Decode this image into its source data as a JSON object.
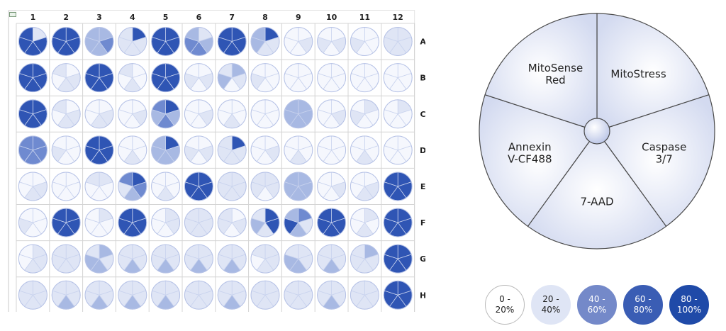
{
  "plate": {
    "columns": [
      "1",
      "2",
      "3",
      "4",
      "5",
      "6",
      "7",
      "8",
      "9",
      "10",
      "11",
      "12"
    ],
    "rows": [
      "A",
      "B",
      "C",
      "D",
      "E",
      "F",
      "G",
      "H"
    ]
  },
  "key": {
    "segments": [
      "MitoStress",
      "Caspase\n3/7",
      "7-AAD",
      "Annexin\nV-CF488",
      "MitoSense\nRed"
    ]
  },
  "legend": [
    {
      "label": "0 -\n20%",
      "color": "#ffffff",
      "text_color": "#222222"
    },
    {
      "label": "20 -\n40%",
      "color": "#dfe5f5",
      "text_color": "#222222"
    },
    {
      "label": "40 -\n60%",
      "color": "#7489c9",
      "text_color": "#ffffff"
    },
    {
      "label": "60 -\n80%",
      "color": "#3a5db4",
      "text_color": "#ffffff"
    },
    {
      "label": "80 -\n100%",
      "color": "#1f4aa8",
      "text_color": "#ffffff"
    }
  ],
  "chart_data": {
    "type": "heatmap",
    "description_of_encoding": "",
    "segment_order": [
      "MitoStress",
      "Caspase 3/7",
      "7-AAD",
      "Annexin V-CF488",
      "MitoSense Red"
    ],
    "bins": [
      "0 - 20%",
      "20 - 40%",
      "40 - 60%",
      "60 - 80%",
      "80 - 100%"
    ],
    "rows": [
      "A",
      "B",
      "C",
      "D",
      "E",
      "F",
      "G",
      "H"
    ],
    "columns": [
      "1",
      "2",
      "3",
      "4",
      "5",
      "6",
      "7",
      "8",
      "9",
      "10",
      "11",
      "12"
    ],
    "wells": {
      "A": [
        [
          1,
          4,
          4,
          4,
          4
        ],
        [
          4,
          4,
          4,
          4,
          4
        ],
        [
          2,
          3,
          2,
          2,
          2
        ],
        [
          4,
          1,
          1,
          1,
          1
        ],
        [
          4,
          4,
          4,
          4,
          4
        ],
        [
          1,
          2,
          3,
          3,
          2
        ],
        [
          4,
          4,
          4,
          4,
          4
        ],
        [
          4,
          1,
          1,
          2,
          2
        ],
        [
          0,
          1,
          0,
          0,
          0
        ],
        [
          0,
          1,
          0,
          1,
          0
        ],
        [
          0,
          0,
          0,
          1,
          0
        ],
        [
          1,
          1,
          1,
          1,
          1
        ]
      ],
      "B": [
        [
          4,
          4,
          4,
          4,
          4
        ],
        [
          0,
          1,
          1,
          0,
          1
        ],
        [
          4,
          4,
          4,
          4,
          4
        ],
        [
          0,
          0,
          1,
          0,
          1
        ],
        [
          4,
          4,
          4,
          4,
          4
        ],
        [
          0,
          1,
          0,
          1,
          0
        ],
        [
          2,
          1,
          0,
          2,
          1
        ],
        [
          0,
          0,
          0,
          1,
          0
        ],
        [
          0,
          0,
          0,
          0,
          0
        ],
        [
          0,
          0,
          0,
          0,
          0
        ],
        [
          0,
          0,
          0,
          0,
          0
        ],
        [
          0,
          0,
          0,
          0,
          0
        ]
      ],
      "C": [
        [
          4,
          4,
          4,
          4,
          4
        ],
        [
          0,
          1,
          1,
          0,
          1
        ],
        [
          0,
          1,
          1,
          0,
          0
        ],
        [
          0,
          1,
          0,
          0,
          0
        ],
        [
          4,
          2,
          3,
          2,
          3
        ],
        [
          0,
          1,
          0,
          0,
          0
        ],
        [
          0,
          0,
          1,
          0,
          0
        ],
        [
          0,
          0,
          0,
          0,
          0
        ],
        [
          2,
          2,
          2,
          2,
          2
        ],
        [
          0,
          1,
          0,
          0,
          0
        ],
        [
          1,
          0,
          0,
          1,
          0
        ],
        [
          1,
          0,
          0,
          0,
          0
        ]
      ],
      "D": [
        [
          3,
          3,
          3,
          3,
          3
        ],
        [
          0,
          0,
          0,
          1,
          0
        ],
        [
          4,
          4,
          4,
          4,
          4
        ],
        [
          0,
          0,
          1,
          0,
          0
        ],
        [
          4,
          2,
          2,
          2,
          2
        ],
        [
          0,
          1,
          0,
          1,
          0
        ],
        [
          4,
          1,
          1,
          1,
          1
        ],
        [
          0,
          1,
          0,
          0,
          0
        ],
        [
          0,
          0,
          1,
          0,
          0
        ],
        [
          0,
          0,
          0,
          0,
          0
        ],
        [
          0,
          0,
          1,
          0,
          0
        ],
        [
          0,
          0,
          0,
          0,
          0
        ]
      ],
      "E": [
        [
          0,
          1,
          1,
          0,
          0
        ],
        [
          0,
          0,
          0,
          0,
          0
        ],
        [
          1,
          0,
          0,
          0,
          1
        ],
        [
          4,
          3,
          2,
          1,
          3
        ],
        [
          0,
          0,
          1,
          0,
          0
        ],
        [
          4,
          4,
          4,
          4,
          4
        ],
        [
          1,
          1,
          1,
          1,
          1
        ],
        [
          1,
          1,
          0,
          1,
          1
        ],
        [
          2,
          2,
          2,
          2,
          2
        ],
        [
          0,
          1,
          0,
          0,
          0
        ],
        [
          0,
          1,
          1,
          0,
          0
        ],
        [
          4,
          4,
          4,
          4,
          4
        ]
      ],
      "F": [
        [
          0,
          0,
          0,
          1,
          0
        ],
        [
          4,
          4,
          4,
          4,
          4
        ],
        [
          1,
          0,
          0,
          0,
          0
        ],
        [
          4,
          4,
          4,
          4,
          4
        ],
        [
          1,
          1,
          0,
          0,
          0
        ],
        [
          1,
          1,
          1,
          1,
          1
        ],
        [
          0,
          1,
          0,
          1,
          1
        ],
        [
          4,
          4,
          1,
          2,
          1
        ],
        [
          3,
          1,
          2,
          4,
          2
        ],
        [
          4,
          4,
          4,
          4,
          4
        ],
        [
          1,
          0,
          1,
          0,
          0
        ],
        [
          4,
          4,
          4,
          4,
          4
        ]
      ],
      "G": [
        [
          1,
          1,
          1,
          0,
          0
        ],
        [
          1,
          1,
          1,
          1,
          1
        ],
        [
          2,
          1,
          2,
          2,
          1
        ],
        [
          1,
          1,
          2,
          1,
          1
        ],
        [
          1,
          1,
          2,
          1,
          1
        ],
        [
          1,
          1,
          2,
          1,
          1
        ],
        [
          1,
          1,
          2,
          1,
          1
        ],
        [
          1,
          1,
          1,
          0,
          1
        ],
        [
          1,
          1,
          2,
          2,
          1
        ],
        [
          1,
          1,
          2,
          1,
          1
        ],
        [
          2,
          1,
          1,
          1,
          1
        ],
        [
          4,
          4,
          4,
          4,
          4
        ]
      ],
      "H": [
        [
          1,
          1,
          1,
          1,
          1
        ],
        [
          1,
          1,
          2,
          1,
          1
        ],
        [
          1,
          1,
          2,
          1,
          1
        ],
        [
          1,
          1,
          2,
          1,
          1
        ],
        [
          1,
          1,
          2,
          1,
          1
        ],
        [
          1,
          1,
          1,
          1,
          1
        ],
        [
          1,
          1,
          2,
          1,
          1
        ],
        [
          1,
          1,
          1,
          1,
          1
        ],
        [
          1,
          1,
          1,
          1,
          1
        ],
        [
          1,
          1,
          2,
          1,
          1
        ],
        [
          1,
          1,
          1,
          1,
          1
        ],
        [
          4,
          4,
          4,
          4,
          4
        ]
      ]
    }
  }
}
